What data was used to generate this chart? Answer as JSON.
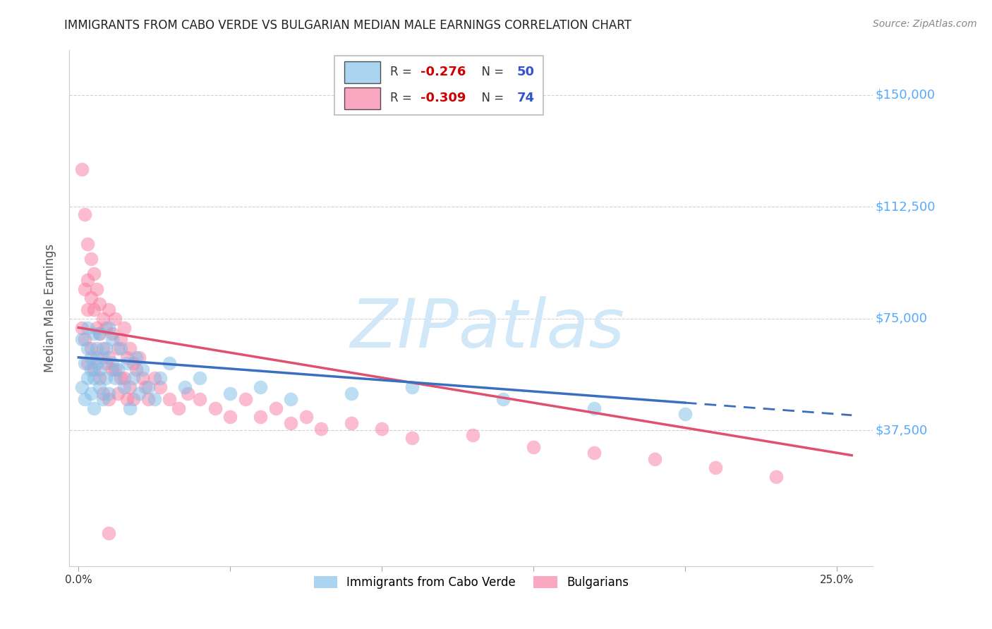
{
  "title": "IMMIGRANTS FROM CABO VERDE VS BULGARIAN MEDIAN MALE EARNINGS CORRELATION CHART",
  "source": "Source: ZipAtlas.com",
  "ylabel": "Median Male Earnings",
  "xlim": [
    -0.003,
    0.262
  ],
  "ylim": [
    -8000,
    165000
  ],
  "cabo_verde_R": -0.276,
  "cabo_verde_N": 50,
  "bulgarians_R": -0.309,
  "bulgarians_N": 74,
  "cabo_verde_color": "#7dbde8",
  "bulgarians_color": "#f87aa0",
  "watermark": "ZIPatlas",
  "watermark_color": "#d0e8f8",
  "background_color": "#ffffff",
  "grid_color": "#cccccc",
  "title_color": "#222222",
  "axis_label_color": "#555555",
  "ytick_color": "#55aaff",
  "xtick_color": "#333333",
  "legend_R_color": "#cc0000",
  "legend_N_color": "#3355cc",
  "cv_line_color": "#3a6ec0",
  "bg_line_color": "#e05070",
  "cv_line_solid_end": 0.2,
  "bg_line_x_start": 0.0,
  "bg_line_x_end": 0.25,
  "cv_line_x_start": 0.0,
  "cv_line_x_end": 0.25,
  "ytick_positions": [
    37500,
    75000,
    112500,
    150000
  ],
  "ytick_labels": [
    "$37,500",
    "$75,000",
    "$112,500",
    "$150,000"
  ],
  "xtick_positions": [
    0.0,
    0.05,
    0.1,
    0.15,
    0.2,
    0.25
  ],
  "xtick_labels": [
    "0.0%",
    "",
    "",
    "",
    "",
    "25.0%"
  ]
}
